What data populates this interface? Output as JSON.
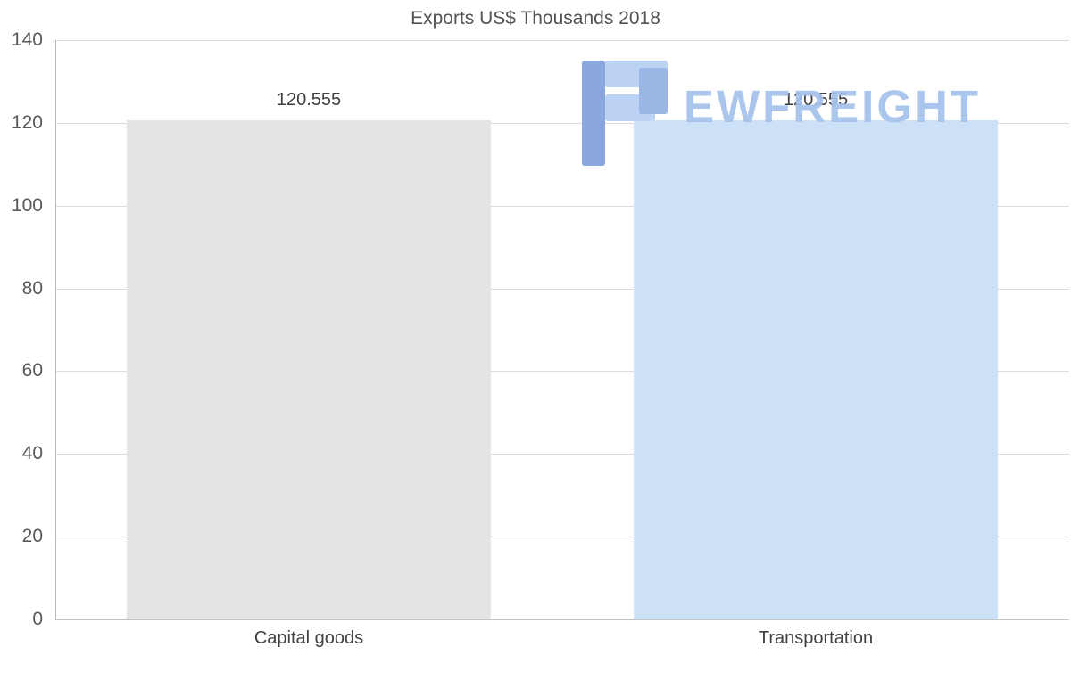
{
  "chart_data": {
    "type": "bar",
    "title": "Exports US$ Thousands 2018",
    "categories": [
      "Capital goods",
      "Transportation"
    ],
    "values": [
      120.555,
      120.555
    ],
    "value_labels": [
      "120.555",
      "120.555"
    ],
    "bar_colors": [
      "#e4e4e4",
      "#cce0f6"
    ],
    "xlabel": "",
    "ylabel": "",
    "ylim": [
      0,
      140
    ],
    "yticks": [
      0,
      20,
      40,
      60,
      80,
      100,
      120,
      140
    ],
    "grid": true,
    "legend": false
  },
  "watermark": {
    "text": "EWFREIGHT",
    "text_color": "#a3c2ec",
    "icon_dark": "#8aa8de",
    "icon_light": "#bcd2f2"
  },
  "colors": {
    "background": "#ffffff",
    "title": "#535353",
    "tick_label": "#595959",
    "category_label": "#404040",
    "value_label": "#3f3f3f",
    "gridline": "#dadada",
    "axis_line": "#bdbdbd"
  }
}
